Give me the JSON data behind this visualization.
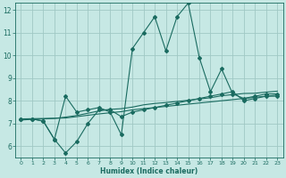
{
  "xlabel": "Humidex (Indice chaleur)",
  "xlim": [
    -0.5,
    23.5
  ],
  "ylim": [
    5.5,
    12.3
  ],
  "xticks": [
    0,
    1,
    2,
    3,
    4,
    5,
    6,
    7,
    8,
    9,
    10,
    11,
    12,
    13,
    14,
    15,
    16,
    17,
    18,
    19,
    20,
    21,
    22,
    23
  ],
  "yticks": [
    6,
    7,
    8,
    9,
    10,
    11,
    12
  ],
  "bg_color": "#c6e8e4",
  "grid_color": "#a0c8c4",
  "line_color": "#1a6b60",
  "line1_x": [
    0,
    1,
    2,
    3,
    4,
    5,
    6,
    7,
    8,
    9,
    10,
    11,
    12,
    13,
    14,
    15,
    16,
    17,
    18,
    19,
    20,
    21,
    22,
    23
  ],
  "line1_y": [
    7.2,
    7.2,
    7.1,
    6.3,
    8.2,
    7.5,
    7.6,
    7.7,
    7.5,
    6.5,
    10.3,
    11.0,
    11.7,
    10.2,
    11.7,
    12.3,
    9.9,
    8.4,
    9.4,
    8.3,
    8.1,
    8.2,
    8.3,
    8.3
  ],
  "line2_x": [
    0,
    1,
    2,
    3,
    4,
    5,
    6,
    7,
    8,
    9,
    10,
    11,
    12,
    13,
    14,
    15,
    16,
    17,
    18,
    19,
    20,
    21,
    22,
    23
  ],
  "line2_y": [
    7.2,
    7.2,
    7.1,
    6.3,
    5.7,
    6.2,
    7.0,
    7.6,
    7.6,
    7.3,
    7.5,
    7.6,
    7.7,
    7.8,
    7.9,
    8.0,
    8.1,
    8.2,
    8.3,
    8.4,
    8.0,
    8.1,
    8.2,
    8.2
  ],
  "line3_x": [
    0,
    1,
    2,
    3,
    4,
    5,
    6,
    7,
    8,
    9,
    10,
    11,
    12,
    13,
    14,
    15,
    16,
    17,
    18,
    19,
    20,
    21,
    22,
    23
  ],
  "line3_y": [
    7.2,
    7.21,
    7.22,
    7.23,
    7.24,
    7.3,
    7.36,
    7.42,
    7.47,
    7.52,
    7.6,
    7.65,
    7.7,
    7.75,
    7.8,
    7.85,
    7.9,
    7.95,
    8.0,
    8.05,
    8.1,
    8.15,
    8.2,
    8.25
  ],
  "line4_x": [
    0,
    1,
    2,
    3,
    4,
    5,
    6,
    7,
    8,
    9,
    10,
    11,
    12,
    13,
    14,
    15,
    16,
    17,
    18,
    19,
    20,
    21,
    22,
    23
  ],
  "line4_y": [
    7.15,
    7.18,
    7.2,
    7.22,
    7.28,
    7.35,
    7.45,
    7.55,
    7.62,
    7.65,
    7.72,
    7.82,
    7.88,
    7.92,
    7.97,
    8.02,
    8.08,
    8.13,
    8.22,
    8.27,
    8.32,
    8.33,
    8.38,
    8.42
  ]
}
